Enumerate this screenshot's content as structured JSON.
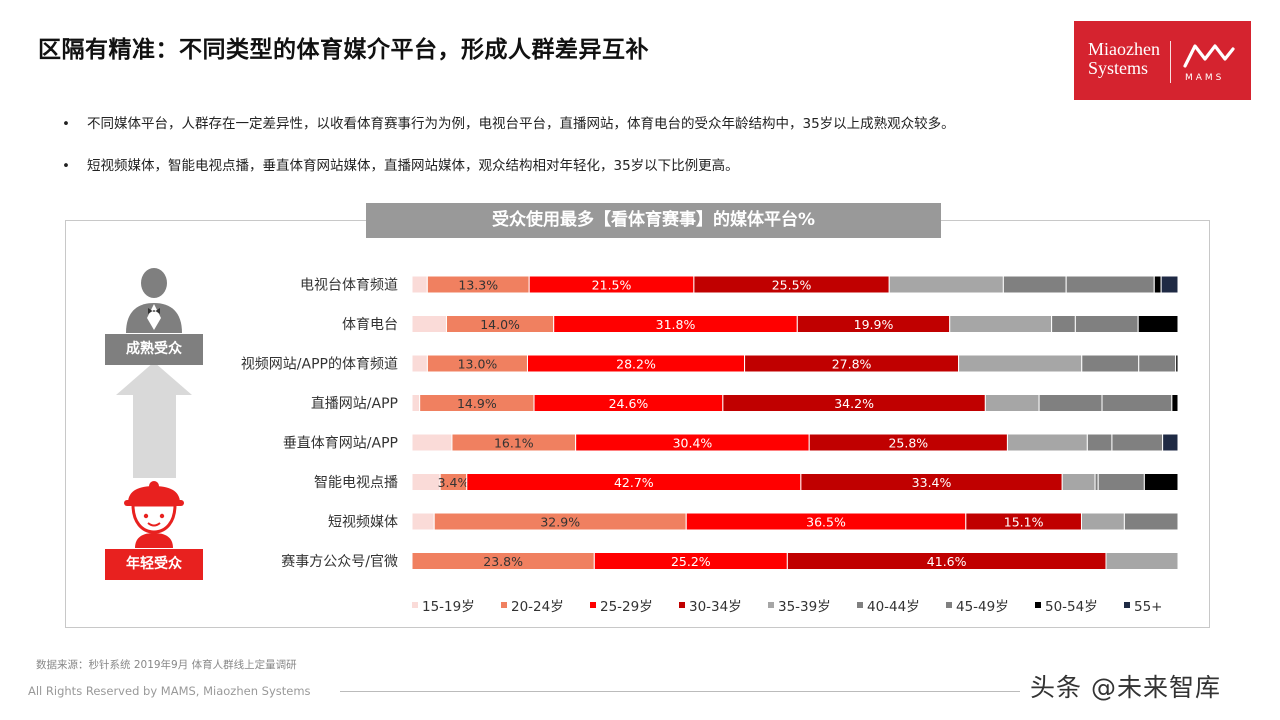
{
  "page": {
    "title": "区隔有精准：不同类型的体育媒介平台，形成人群差异互补",
    "bullets": [
      "不同媒体平台，人群存在一定差异性，以收看体育赛事行为为例，电视台平台，直播网站，体育电台的受众年龄结构中，35岁以上成熟观众较多。",
      "短视频媒体，智能电视点播，垂直体育网站媒体，直播网站媒体，观众结构相对年轻化，35岁以下比例更高。"
    ],
    "logo": {
      "brand_line1": "Miaozhen",
      "brand_line2": "Systems",
      "mark_text": "MAMS"
    },
    "source": "数据来源：秒针系统  2019年9月  体育人群线上定量调研",
    "rights": "All Rights Reserved by MAMS, Miaozhen Systems",
    "watermark": "头条 @未来智库",
    "audience": {
      "mature_label": "成熟受众",
      "young_label": "年轻受众"
    }
  },
  "colors": {
    "15-19岁": "#fadbd8",
    "20-24岁": "#f08060",
    "25-29岁": "#ff0000",
    "30-34岁": "#c00000",
    "35-39岁": "#a6a6a6",
    "40-44岁": "#808080",
    "45-49岁": "#808080",
    "50-54岁": "#000000",
    "55+": "#1f2a44",
    "panel_title_bg": "#999999",
    "mature_label_bg": "#7f7f7f",
    "young_label_bg": "#e8211f",
    "arrow": "#d9d9d9"
  },
  "chart_data": {
    "type": "bar",
    "orientation": "horizontal",
    "stacked": true,
    "normalized": true,
    "title": "受众使用最多【看体育赛事】的媒体平台%",
    "categories": [
      "电视台体育频道",
      "体育电台",
      "视频网站/APP的体育频道",
      "直播网站/APP",
      "垂直体育网站/APP",
      "智能电视点播",
      "短视频媒体",
      "赛事方公众号/官微"
    ],
    "series": [
      {
        "name": "15-19岁",
        "values": [
          2.0,
          4.5,
          2.0,
          1.0,
          5.2,
          3.6,
          2.9,
          0.0
        ]
      },
      {
        "name": "20-24岁",
        "values": [
          13.3,
          14.0,
          13.0,
          14.9,
          16.1,
          3.4,
          32.9,
          23.8
        ]
      },
      {
        "name": "25-29岁",
        "values": [
          21.5,
          31.8,
          28.2,
          24.6,
          30.4,
          42.7,
          36.5,
          25.2
        ]
      },
      {
        "name": "30-34岁",
        "values": [
          25.5,
          19.9,
          27.8,
          34.2,
          25.8,
          33.4,
          15.1,
          41.6
        ]
      },
      {
        "name": "35-39岁",
        "values": [
          14.9,
          13.3,
          16.0,
          7.0,
          10.4,
          4.2,
          5.6,
          9.4
        ]
      },
      {
        "name": "40-44岁",
        "values": [
          8.2,
          3.1,
          7.4,
          8.2,
          3.2,
          0.4,
          7.0,
          0.0
        ]
      },
      {
        "name": "45-49岁",
        "values": [
          11.5,
          8.2,
          4.8,
          9.1,
          6.6,
          5.9,
          0.0,
          0.0
        ]
      },
      {
        "name": "50-54岁",
        "values": [
          0.9,
          5.2,
          0.3,
          0.8,
          0.0,
          4.3,
          0.0,
          0.0
        ]
      },
      {
        "name": "55+",
        "values": [
          2.2,
          0.0,
          0.0,
          0.0,
          2.0,
          0.0,
          0.0,
          0.0
        ]
      }
    ],
    "data_labels": {
      "20-24岁": [
        "13.3%",
        "14.0%",
        "13.0%",
        "14.9%",
        "16.1%",
        "3.4%",
        "32.9%",
        "23.8%"
      ],
      "25-29岁": [
        "21.5%",
        "31.8%",
        "28.2%",
        "24.6%",
        "30.4%",
        "42.7%",
        "36.5%",
        "25.2%"
      ],
      "30-34岁": [
        "25.5%",
        "19.9%",
        "27.8%",
        "34.2%",
        "25.8%",
        "33.4%",
        "15.1%",
        "41.6%"
      ]
    },
    "legend": [
      "15-19岁",
      "20-24岁",
      "25-29岁",
      "30-34岁",
      "35-39岁",
      "40-44岁",
      "45-49岁",
      "50-54岁",
      "55+"
    ],
    "legend_position": "bottom",
    "xlim": [
      0,
      100
    ],
    "grid": false
  }
}
